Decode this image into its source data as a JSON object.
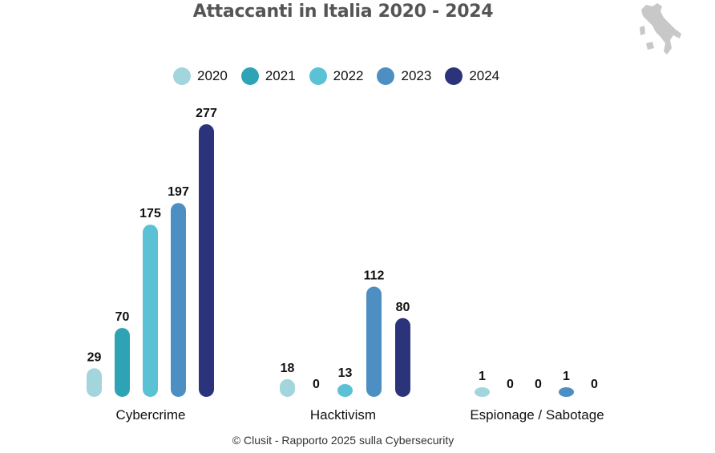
{
  "title": "Attaccanti in Italia 2020 - 2024",
  "footer": "© Clusit - Rapporto 2025 sulla Cybersecurity",
  "colors": {
    "2020": "#a3d5dc",
    "2021": "#2fa3b6",
    "2022": "#5bc2d6",
    "2023": "#4d8fc2",
    "2024": "#2b337a",
    "title": "#555555",
    "map": "#c8c8c8"
  },
  "icons": {
    "map": "italy-map-icon"
  },
  "chart_data": {
    "type": "bar",
    "title": "Attaccanti in Italia 2020 - 2024",
    "categories": [
      "Cybercrime",
      "Hacktivism",
      "Espionage / Sabotage"
    ],
    "series": [
      {
        "name": "2020",
        "values": [
          29,
          18,
          1
        ]
      },
      {
        "name": "2021",
        "values": [
          70,
          0,
          0
        ]
      },
      {
        "name": "2022",
        "values": [
          175,
          13,
          0
        ]
      },
      {
        "name": "2023",
        "values": [
          197,
          112,
          1
        ]
      },
      {
        "name": "2024",
        "values": [
          277,
          80,
          0
        ]
      }
    ],
    "ylim": [
      0,
      277
    ],
    "grid": false,
    "legend": "top",
    "data_labels": true
  }
}
